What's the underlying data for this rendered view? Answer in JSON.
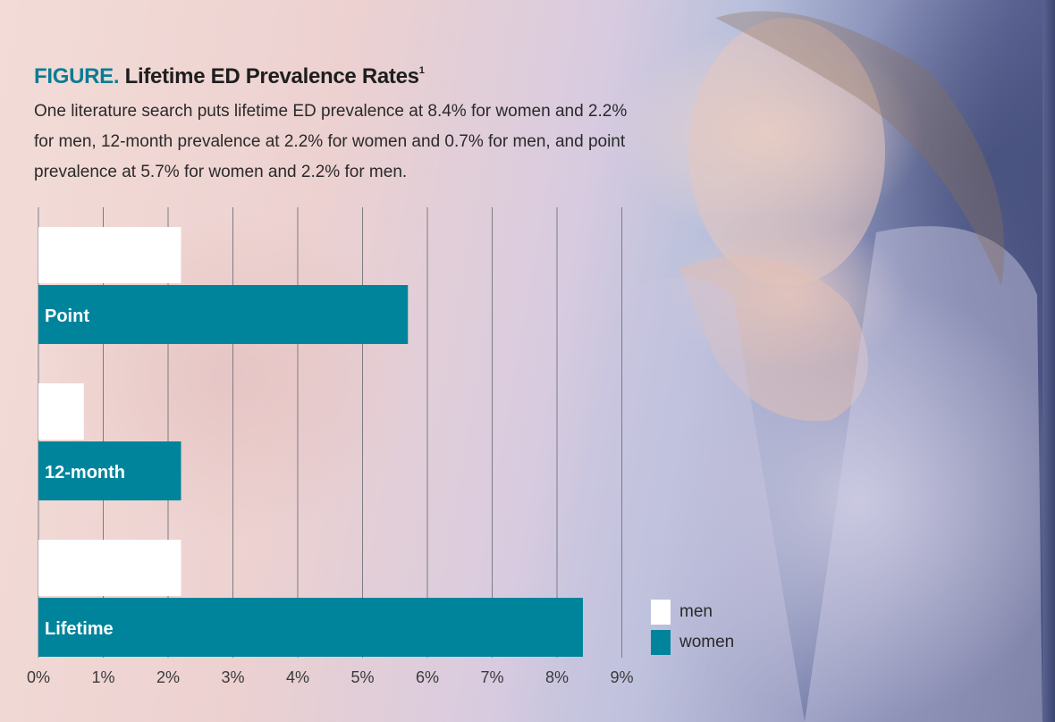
{
  "figure": {
    "label": "FIGURE.",
    "title": "Lifetime ED Prevalence Rates",
    "footnote": "1",
    "description": "One literature search puts lifetime ED prevalence at 8.4% for women and 2.2% for men, 12-month prevalence at 2.2% for women and 0.7% for men, and point prevalence at 5.7% for women and 2.2% for men."
  },
  "colors": {
    "men": "#ffffff",
    "women": "#00849c",
    "accent": "#0a7c94",
    "grid": "#7c7c82"
  },
  "chart_data": {
    "type": "bar",
    "orientation": "horizontal",
    "title": "Lifetime ED Prevalence Rates",
    "categories": [
      "Point",
      "12-month",
      "Lifetime"
    ],
    "series": [
      {
        "name": "men",
        "values": [
          2.2,
          0.7,
          2.2
        ]
      },
      {
        "name": "women",
        "values": [
          5.7,
          2.2,
          8.4
        ]
      }
    ],
    "xlim": [
      0,
      9
    ],
    "xticks": [
      "0%",
      "1%",
      "2%",
      "3%",
      "4%",
      "5%",
      "6%",
      "7%",
      "8%",
      "9%"
    ],
    "grid": true,
    "legend": [
      "men",
      "women"
    ],
    "legend_position": "bottom-right",
    "xlabel": "",
    "ylabel": ""
  }
}
